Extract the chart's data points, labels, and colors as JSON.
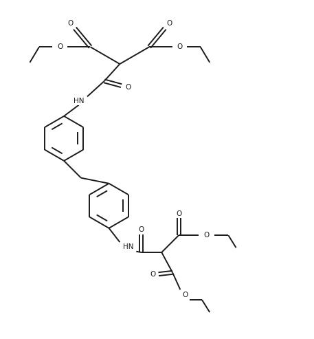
{
  "background_color": "#ffffff",
  "line_color": "#1a1a1a",
  "line_width": 1.4,
  "figsize": [
    4.57,
    4.93
  ],
  "dpi": 100,
  "xlim": [
    0,
    10
  ],
  "ylim": [
    0,
    10.8
  ],
  "font_size": 7.5
}
